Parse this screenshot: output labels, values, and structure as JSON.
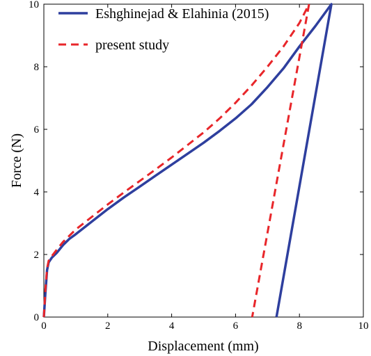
{
  "chart_data": {
    "type": "line",
    "xlabel": "Displacement (mm)",
    "ylabel": "Force (N)",
    "xlim": [
      0,
      10
    ],
    "ylim": [
      0,
      10
    ],
    "xticks": [
      "0",
      "2",
      "4",
      "6",
      "8",
      "10"
    ],
    "yticks": [
      "0",
      "2",
      "4",
      "6",
      "8",
      "10"
    ],
    "grid": false,
    "legend_position": "top-left",
    "series": [
      {
        "name": "Eshghinejad & Elahinia (2015)",
        "style": "solid",
        "color": "#2e3f9e",
        "x": [
          0,
          0.05,
          0.1,
          0.15,
          0.25,
          0.4,
          0.6,
          0.8,
          1.0,
          1.5,
          2.0,
          2.5,
          3.0,
          3.5,
          4.0,
          4.5,
          5.0,
          5.5,
          6.0,
          6.5,
          7.0,
          7.5,
          8.0,
          8.5,
          9.0,
          7.28
        ],
        "y": [
          0,
          0.8,
          1.5,
          1.75,
          1.9,
          2.05,
          2.3,
          2.5,
          2.65,
          3.05,
          3.45,
          3.82,
          4.17,
          4.52,
          4.87,
          5.22,
          5.57,
          5.95,
          6.35,
          6.8,
          7.35,
          7.95,
          8.65,
          9.3,
          10.0,
          0
        ]
      },
      {
        "name": "present study",
        "style": "dashed",
        "color": "#e8262a",
        "x": [
          0,
          0.05,
          0.1,
          0.15,
          0.25,
          0.4,
          0.6,
          0.8,
          1.0,
          1.5,
          2.0,
          2.5,
          3.0,
          3.5,
          4.0,
          4.5,
          5.0,
          5.5,
          6.0,
          6.5,
          7.0,
          7.5,
          8.0,
          8.3,
          6.52
        ],
        "y": [
          0,
          0.9,
          1.55,
          1.8,
          1.95,
          2.15,
          2.4,
          2.6,
          2.8,
          3.2,
          3.6,
          3.98,
          4.35,
          4.72,
          5.1,
          5.5,
          5.9,
          6.35,
          6.85,
          7.4,
          8.0,
          8.65,
          9.4,
          10.0,
          0
        ]
      }
    ]
  }
}
